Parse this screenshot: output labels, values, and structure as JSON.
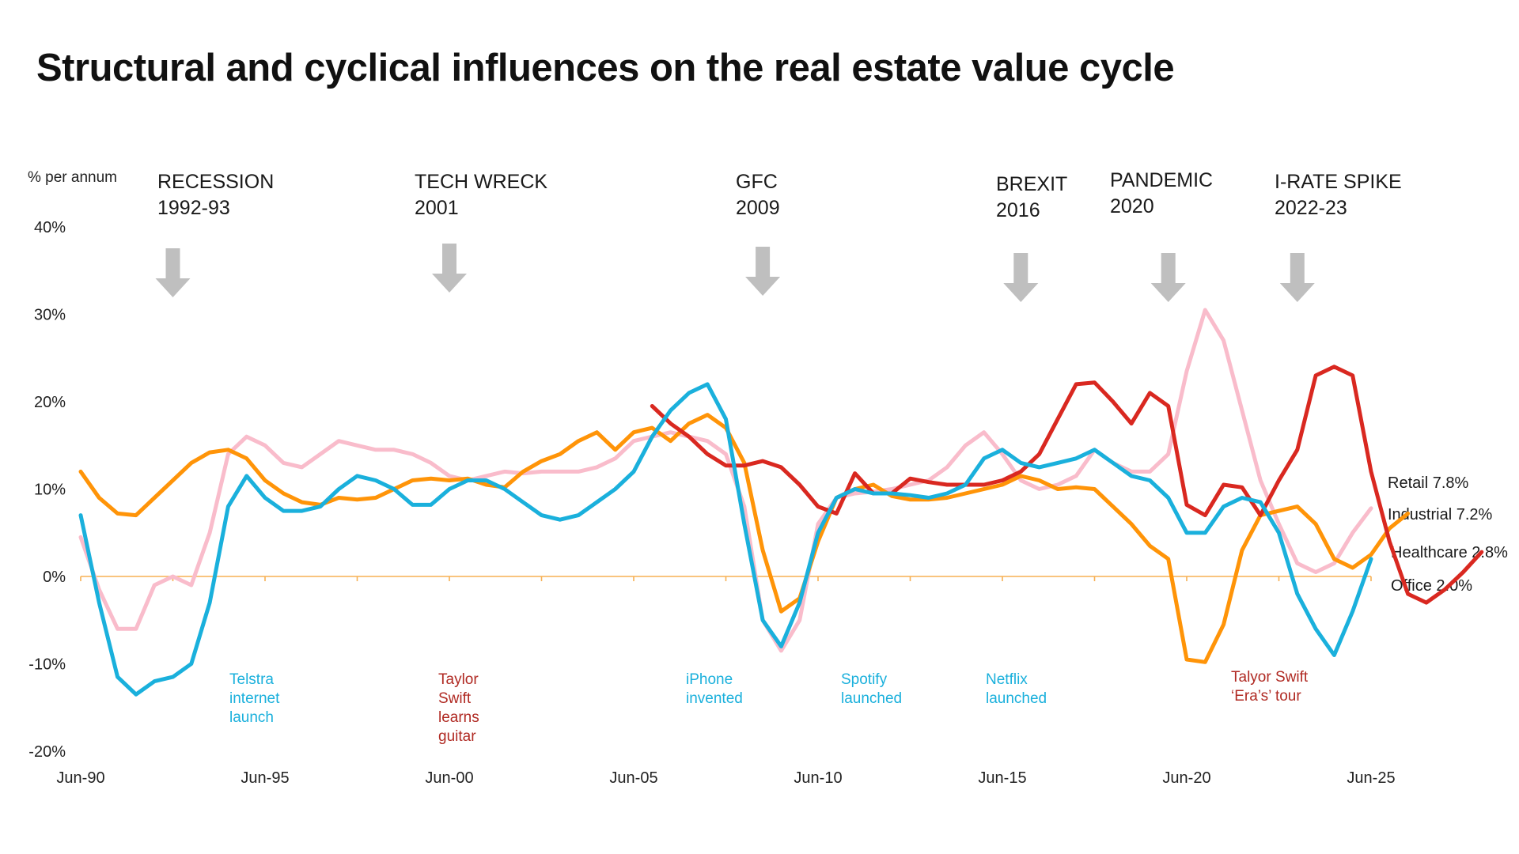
{
  "title": "Structural and cyclical influences on the real estate value cycle",
  "chart_data": {
    "type": "line",
    "title": "Structural and cyclical influences on the real estate value cycle",
    "ylabel": "% per annum",
    "xlabel": "",
    "ylim": [
      -20,
      40
    ],
    "yticks": [
      "40%",
      "30%",
      "20%",
      "10%",
      "0%",
      "-10%",
      "-20%"
    ],
    "ytick_values": [
      40,
      30,
      20,
      10,
      0,
      -10,
      -20
    ],
    "xlim": [
      1990.5,
      2025.5
    ],
    "xticks": [
      "Jun-90",
      "Jun-95",
      "Jun-00",
      "Jun-05",
      "Jun-10",
      "Jun-15",
      "Jun-20",
      "Jun-25"
    ],
    "xtick_values": [
      1990.5,
      1995.5,
      2000.5,
      2005.5,
      2010.5,
      2015.5,
      2020.5,
      2025.5
    ],
    "grid": false,
    "x_step_years": 0.5,
    "x_start": 1990.5,
    "series": [
      {
        "name": "Retail",
        "final_label": "Retail 7.8%",
        "color": "#F9BCCB",
        "start": 1990.5,
        "values": [
          4.5,
          -1.5,
          -6,
          -6,
          -1,
          0,
          -1,
          5,
          14,
          16,
          15,
          13,
          12.5,
          14,
          15.5,
          15,
          14.5,
          14.5,
          14,
          13,
          11.5,
          11,
          11.5,
          12,
          11.8,
          12,
          12,
          12,
          12.5,
          13.5,
          15.5,
          16,
          16.5,
          16,
          15.5,
          14,
          8,
          -5,
          -8.5,
          -5,
          6,
          9,
          9.5,
          9.7,
          10,
          10.5,
          11,
          12.5,
          15,
          16.5,
          14,
          11,
          10,
          10.5,
          11.5,
          14.5,
          13,
          12,
          12,
          14,
          23.5,
          30.5,
          27,
          19,
          11,
          6,
          1.5,
          0.5,
          1.5,
          5,
          7.8
        ]
      },
      {
        "name": "Industrial",
        "final_label": "Industrial 7.2%",
        "color": "#FF9408",
        "start": 1990.5,
        "values": [
          12,
          9,
          7.2,
          7,
          9,
          11,
          13,
          14.2,
          14.5,
          13.5,
          11,
          9.5,
          8.5,
          8.2,
          9,
          8.8,
          9,
          10,
          11,
          11.2,
          11,
          11.2,
          10.5,
          10.2,
          12,
          13.2,
          14,
          15.5,
          16.5,
          14.5,
          16.5,
          17,
          15.5,
          17.5,
          18.5,
          17,
          13,
          3,
          -4,
          -2.5,
          4,
          9,
          10,
          10.5,
          9.2,
          8.8,
          8.8,
          9,
          9.5,
          10,
          10.5,
          11.5,
          11,
          10,
          10.2,
          10,
          8,
          6,
          3.5,
          2,
          -9.5,
          -9.8,
          -5.5,
          3,
          7,
          7.5,
          8,
          6,
          2,
          1,
          2.5,
          5.5,
          7.2
        ]
      },
      {
        "name": "Healthcare",
        "final_label": "Healthcare 2.8%",
        "color": "#D92820",
        "start": 2006.0,
        "values": [
          19.5,
          17.5,
          16,
          14,
          12.7,
          12.7,
          13.2,
          12.5,
          10.5,
          8,
          7.2,
          11.8,
          9.5,
          9.5,
          11.2,
          10.8,
          10.5,
          10.5,
          10.5,
          11,
          12,
          14,
          18,
          22,
          22.2,
          20,
          17.5,
          21,
          19.5,
          8.2,
          7,
          10.5,
          10.2,
          7,
          11,
          14.5,
          23,
          24,
          23,
          12,
          4,
          -2,
          -3,
          -1.5,
          0.5,
          2.8
        ]
      },
      {
        "name": "Office",
        "final_label": "Office 2.0%",
        "color": "#1AB0DC",
        "start": 1990.5,
        "values": [
          7,
          -3,
          -11.5,
          -13.5,
          -12,
          -11.5,
          -10,
          -3,
          8,
          11.5,
          9,
          7.5,
          7.5,
          8,
          10,
          11.5,
          11,
          10,
          8.2,
          8.2,
          10,
          11,
          11,
          10,
          8.5,
          7,
          6.5,
          7,
          8.5,
          10,
          12,
          16,
          19,
          21,
          22,
          18,
          6,
          -5,
          -8,
          -3,
          5,
          9,
          10,
          9.5,
          9.5,
          9.3,
          9,
          9.5,
          10.5,
          13.5,
          14.5,
          13,
          12.5,
          13,
          13.5,
          14.5,
          13,
          11.5,
          11,
          9,
          5,
          5,
          8,
          9,
          8.5,
          5,
          -2,
          -6,
          -9,
          -4,
          2
        ]
      }
    ],
    "events": [
      {
        "label": "RECESSION",
        "period": "1992-93",
        "x": 1993.0
      },
      {
        "label": "TECH WRECK",
        "period": "2001",
        "x": 2000.5
      },
      {
        "label": "GFC",
        "period": "2009",
        "x": 2009.0
      },
      {
        "label": "BREXIT",
        "period": "2016",
        "x": 2016.0
      },
      {
        "label": "PANDEMIC",
        "period": "2020",
        "x": 2020.0
      },
      {
        "label": "I-RATE SPIKE",
        "period": "2022-23",
        "x": 2023.5
      }
    ],
    "annotations": [
      {
        "text": "Telstra\ninternet\nlaunch",
        "color": "#1AB0DC"
      },
      {
        "text": "Taylor\nSwift\nlearns\nguitar",
        "color": "#B02A23"
      },
      {
        "text": "iPhone\ninvented",
        "color": "#1AB0DC"
      },
      {
        "text": "Spotify\nlaunched",
        "color": "#1AB0DC"
      },
      {
        "text": "Netflix\nlaunched",
        "color": "#1AB0DC"
      },
      {
        "text": "Talyor Swift\n‘Era’s’ tour",
        "color": "#B02A23"
      }
    ],
    "zero_line_color": "#F7B054",
    "arrow_color": "#BFBFBF"
  }
}
